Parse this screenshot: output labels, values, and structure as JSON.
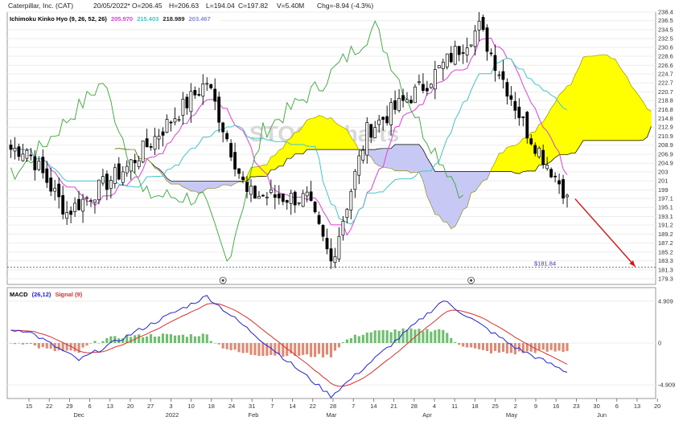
{
  "header": {
    "symbol": "Caterpillar, Inc. (CAT)",
    "date": "20/05/2022*",
    "open": "O=206.45",
    "high": "H=206.63",
    "low": "L=194.04",
    "close": "C=197.82",
    "volume": "V=5.40M",
    "change": "Chg=-8.94 (-4.3%)"
  },
  "colors": {
    "cloud_bull": "#ffff00",
    "cloud_bear": "#c8c8f4",
    "tenkan": "#e040e0",
    "kijun": "#40c8c8",
    "chikou": "#33aa33",
    "ssb_line": "#000000",
    "macd": "#2222dd",
    "signal": "#e03030",
    "hist_pos": "#6cbf6c",
    "hist_neg": "#e08870",
    "arrow": "#dd1111"
  },
  "chart_data": [
    {
      "type": "candlestick",
      "title": "Ichimoku Kinko Hyo (9, 26, 52, 26)",
      "legend": [
        {
          "label": "Ichimoku Kinko Hyo (9, 26, 52, 26)",
          "color": "#000000"
        },
        {
          "label": "205.970",
          "color": "#e040e0"
        },
        {
          "label": "215.403",
          "color": "#40c8c8"
        },
        {
          "label": "218.989",
          "color": "#222222"
        },
        {
          "label": "203.467",
          "color": "#8888dd"
        }
      ],
      "ylim": [
        179.3,
        238.4
      ],
      "y_ticks": [
        "238.4",
        "236.5",
        "234.5",
        "232.5",
        "230.6",
        "228.6",
        "226.6",
        "224.7",
        "222.7",
        "220.7",
        "218.8",
        "216.8",
        "214.8",
        "212.9",
        "210.9",
        "208.9",
        "206.9",
        "204.9",
        "203",
        "201",
        "199",
        "197.1",
        "195.1",
        "193.1",
        "191.2",
        "189.2",
        "187.2",
        "185.2",
        "183.3",
        "181.3",
        "179.3"
      ],
      "annotation": "$181.84",
      "annotation_value": 181.84,
      "ohlc_samples": [
        {
          "date": "2021-11-12",
          "close": 208.0
        },
        {
          "date": "2021-11-26",
          "close": 194.0
        },
        {
          "date": "2021-12-17",
          "close": 204.0
        },
        {
          "date": "2022-01-14",
          "close": 223.0
        },
        {
          "date": "2022-01-28",
          "close": 198.0
        },
        {
          "date": "2022-02-18",
          "close": 197.0
        },
        {
          "date": "2022-02-28",
          "close": 183.0
        },
        {
          "date": "2022-03-11",
          "close": 212.0
        },
        {
          "date": "2022-03-31",
          "close": 222.0
        },
        {
          "date": "2022-04-20",
          "close": 235.0
        },
        {
          "date": "2022-05-06",
          "close": 212.0
        },
        {
          "date": "2022-05-20",
          "close": 197.82
        }
      ]
    },
    {
      "type": "line",
      "title": "MACD",
      "legend": [
        {
          "label": "MACD",
          "color": "#000000"
        },
        {
          "label": "(26,12)",
          "color": "#2222dd"
        },
        {
          "label": "Signal (9)",
          "color": "#e03030"
        }
      ],
      "y_ticks": [
        "4.909",
        "0",
        "-4.909"
      ],
      "ylim": [
        -6.5,
        6.5
      ],
      "macd_samples": [
        {
          "date": "2021-11-12",
          "value": 1.5
        },
        {
          "date": "2021-12-01",
          "value": -2.0
        },
        {
          "date": "2022-01-14",
          "value": 5.5
        },
        {
          "date": "2022-02-28",
          "value": -6.2
        },
        {
          "date": "2022-04-07",
          "value": 5.0
        },
        {
          "date": "2022-05-03",
          "value": -0.5
        },
        {
          "date": "2022-05-20",
          "value": -3.4
        }
      ]
    }
  ],
  "x_axis": {
    "day_labels": [
      "15",
      "22",
      "29",
      "6",
      "13",
      "20",
      "27",
      "3",
      "10",
      "18",
      "24",
      "31",
      "7",
      "14",
      "22",
      "28",
      "7",
      "14",
      "21",
      "28",
      "4",
      "11",
      "18",
      "25",
      "2",
      "9",
      "16",
      "23",
      "30",
      "6",
      "13",
      "20"
    ],
    "month_labels": [
      "Dec",
      "2022",
      "Feb",
      "Mar",
      "Apr",
      "May",
      "Jun"
    ]
  }
}
